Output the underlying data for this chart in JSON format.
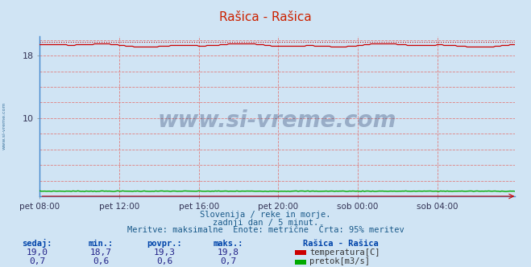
{
  "title": "Rašica - Rašica",
  "background_color": "#d0e4f4",
  "plot_bg_color": "#d0e4f4",
  "grid_color": "#e08080",
  "xlim": [
    0,
    287
  ],
  "ylim": [
    0,
    20.5
  ],
  "yticks": [
    10,
    18
  ],
  "xtick_labels": [
    "pet 08:00",
    "pet 12:00",
    "pet 16:00",
    "pet 20:00",
    "sob 00:00",
    "sob 04:00"
  ],
  "xtick_positions": [
    0,
    48,
    96,
    144,
    192,
    240
  ],
  "temp_avg": 19.3,
  "temp_max": 19.8,
  "temp_min": 18.7,
  "flow_avg": 0.65,
  "flow_max": 0.7,
  "flow_min": 0.6,
  "temp_color": "#cc0000",
  "flow_color": "#00aa00",
  "dotted_line_y": 19.75,
  "watermark_text": "www.si-vreme.com",
  "watermark_color": "#1a3060",
  "watermark_alpha": 0.3,
  "subtitle1": "Slovenija / reke in morje.",
  "subtitle2": "zadnji dan / 5 minut.",
  "subtitle3": "Meritve: maksimalne  Enote: metrične  Črta: 95% meritev",
  "footer_color": "#1a5a8a",
  "label_sedaj": "sedaj:",
  "label_min": "min.:",
  "label_povpr": "povpr.:",
  "label_maks": "maks.:",
  "label_station": "Rašica - Rašica",
  "val_sedaj_temp": "19,0",
  "val_min_temp": "18,7",
  "val_povpr_temp": "19,3",
  "val_maks_temp": "19,8",
  "val_sedaj_flow": "0,7",
  "val_min_flow": "0,6",
  "val_povpr_flow": "0,6",
  "val_maks_flow": "0,7",
  "legend_temp": "temperatura[C]",
  "legend_flow": "pretok[m3/s]",
  "left_label": "www.si-vreme.com",
  "left_label_color": "#1a5a8a",
  "spine_color": "#4488cc",
  "title_color": "#cc2200"
}
